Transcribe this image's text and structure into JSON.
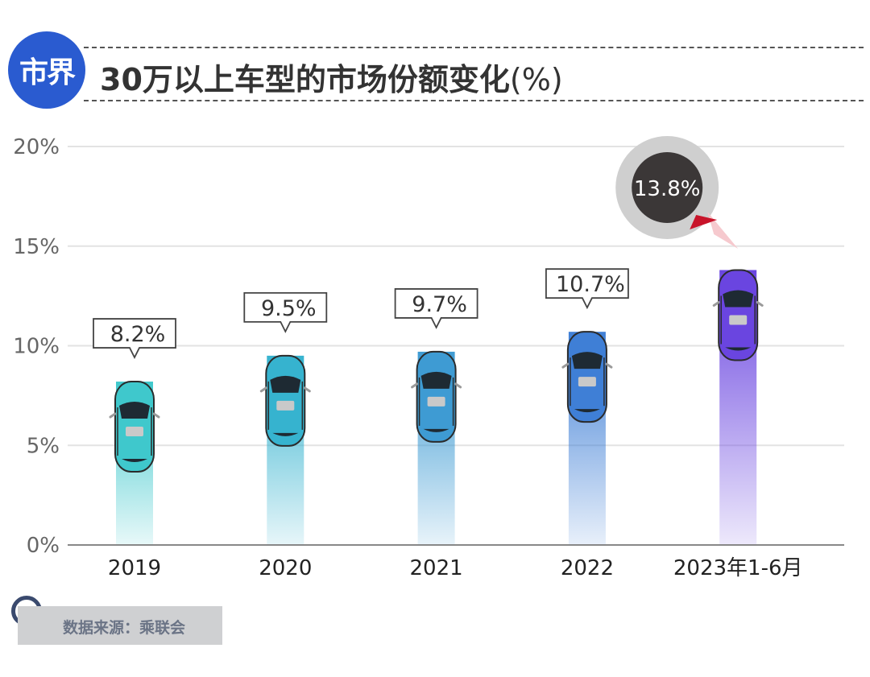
{
  "header": {
    "logo_text": "市界",
    "title": "30万以上车型的市场份额变化",
    "title_unit": "(%)"
  },
  "chart_data": {
    "type": "bar",
    "title": "30万以上车型的市场份额变化(%)",
    "xlabel": "",
    "ylabel": "",
    "ylim": [
      0,
      20
    ],
    "yticks": [
      0,
      5,
      10,
      15,
      20
    ],
    "ytick_labels": [
      "0%",
      "5%",
      "10%",
      "15%",
      "20%"
    ],
    "categories": [
      "2019",
      "2020",
      "2021",
      "2022",
      "2023年1-6月"
    ],
    "values": [
      8.2,
      9.5,
      9.7,
      10.7,
      13.8
    ],
    "value_labels": [
      "8.2%",
      "9.5%",
      "9.7%",
      "10.7%",
      "13.8%"
    ],
    "highlight_index": 4,
    "colors": [
      "#3fc8cc",
      "#36b3cf",
      "#3e9bd3",
      "#3f7fd6",
      "#6a45e0"
    ],
    "grid": true
  },
  "footer": {
    "source": "数据来源：乘联会"
  }
}
